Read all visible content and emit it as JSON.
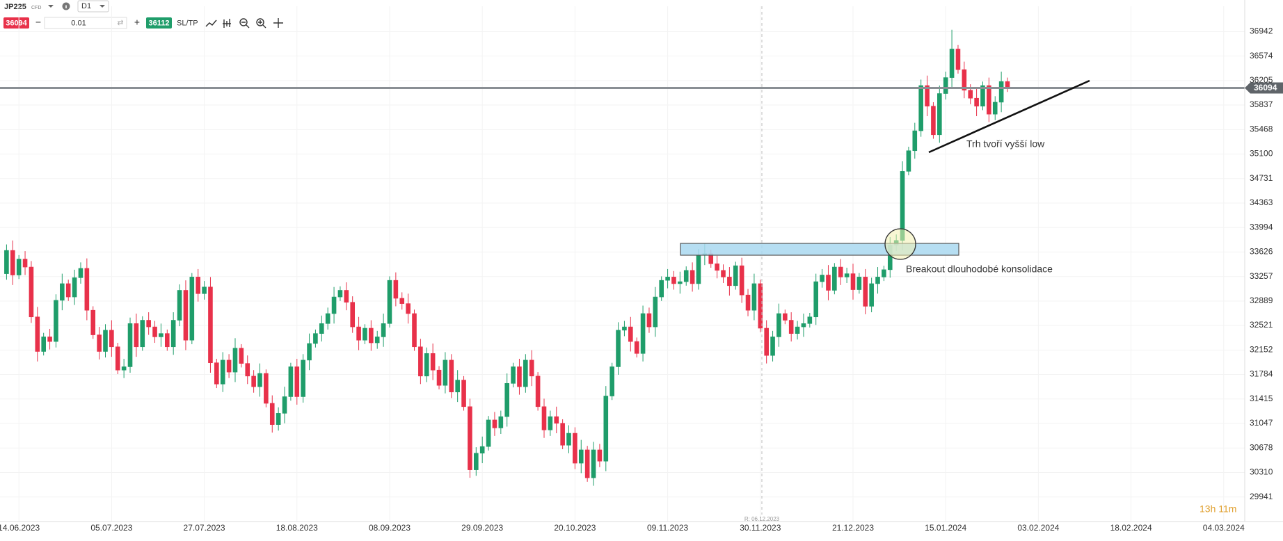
{
  "toolbar": {
    "symbol": "JP225",
    "instrument_type": "CFD",
    "timeframe": "D1",
    "sell_price": "36094",
    "volume": "0.01",
    "buy_price": "36112",
    "sl_tp": "SL/TP"
  },
  "chart_data": {
    "type": "candlestick",
    "up_color": "#1f9d6a",
    "down_color": "#e8314a",
    "grid": true,
    "ylim": [
      29572,
      37323
    ],
    "yticks": [
      36942,
      36574,
      36205,
      35837,
      35468,
      35100,
      34731,
      34363,
      33994,
      33626,
      33257,
      32889,
      32521,
      32152,
      31784,
      31415,
      31047,
      30678,
      30310,
      29941
    ],
    "xlim": [
      -1.06,
      200.4
    ],
    "xticks": [
      {
        "value": 2,
        "label": "14.06.2023"
      },
      {
        "value": 17,
        "label": "05.07.2023"
      },
      {
        "value": 32,
        "label": "27.07.2023"
      },
      {
        "value": 47,
        "label": "18.08.2023"
      },
      {
        "value": 62,
        "label": "08.09.2023"
      },
      {
        "value": 77,
        "label": "29.09.2023"
      },
      {
        "value": 92,
        "label": "20.10.2023"
      },
      {
        "value": 107,
        "label": "09.11.2023"
      },
      {
        "value": 122,
        "label": "30.11.2023"
      },
      {
        "value": 137,
        "label": "21.12.2023"
      },
      {
        "value": 152,
        "label": "15.01.2024"
      },
      {
        "value": 167,
        "label": "03.02.2024"
      },
      {
        "value": 182,
        "label": "18.02.2024"
      },
      {
        "value": 197,
        "label": "04.03.2024"
      }
    ],
    "last_price": 36094,
    "annotations": [
      "Breakout dlouhodobé konsolidace",
      "Trh tvoří vyšší low"
    ],
    "cursor_label": "R: 06.12.2023",
    "timer": "13h 11m",
    "open": [
      33300,
      33650,
      33280,
      33520,
      33400,
      32650,
      32130,
      32350,
      32280,
      32900,
      33150,
      32950,
      33240,
      33380,
      32750,
      32380,
      32130,
      32450,
      32200,
      31850,
      31900,
      32550,
      32200,
      32600,
      32500,
      32350,
      32400,
      32200,
      32600,
      33050,
      32300,
      33250,
      33000,
      33100,
      31960,
      31640,
      32000,
      31820,
      32180,
      31950,
      31760,
      31600,
      31800,
      31350,
      31030,
      31200,
      31450,
      31900,
      31450,
      32000,
      32250,
      32400,
      32550,
      32700,
      32950,
      33050,
      32870,
      32500,
      32300,
      32480,
      32260,
      32350,
      32550,
      33200,
      32930,
      32850,
      32700,
      32200,
      31760,
      32100,
      31850,
      31620,
      32000,
      31520,
      31700,
      31300,
      30350,
      30600,
      30700,
      31100,
      30980,
      31150,
      31650,
      31900,
      31600,
      32000,
      31760,
      31300,
      30950,
      31150,
      31050,
      30720,
      30900,
      30450,
      30650,
      30230,
      30650,
      30480,
      31460,
      31900,
      32450,
      32500,
      32280,
      32100,
      32700,
      32500,
      32950,
      33200,
      33250,
      33150,
      33180,
      33350,
      33150,
      33580,
      33600,
      33450,
      33350,
      33250,
      33120,
      33420,
      32980,
      32750,
      33150,
      32480,
      32070,
      32350,
      32700,
      32600,
      32400,
      32500,
      32550,
      32650,
      33180,
      33280,
      33050,
      33400,
      33250,
      33300,
      33060,
      33250,
      32810,
      33150,
      33250,
      33360,
      33730,
      33800,
      34840,
      35150,
      35450,
      36130,
      35820,
      35390,
      36010,
      36250,
      36680,
      36370,
      36060,
      35940,
      35820,
      36130,
      35700,
      35880,
      36190
    ],
    "high": [
      33740,
      33800,
      33580,
      33640,
      33490,
      32800,
      32410,
      32470,
      32990,
      33300,
      33210,
      33360,
      33470,
      33530,
      32810,
      32500,
      32540,
      32600,
      32260,
      32020,
      32640,
      32700,
      32660,
      32720,
      32590,
      32550,
      32460,
      32720,
      33140,
      33200,
      33310,
      33370,
      33190,
      33250,
      32020,
      32120,
      32090,
      32330,
      32240,
      32070,
      31850,
      31950,
      31860,
      31470,
      31290,
      31600,
      31960,
      32020,
      32090,
      32400,
      32460,
      32670,
      32790,
      33100,
      33110,
      33170,
      32960,
      32650,
      32540,
      32600,
      32440,
      32700,
      33260,
      33320,
      33020,
      33000,
      32760,
      32320,
      32190,
      32250,
      31910,
      32120,
      32090,
      31850,
      31760,
      31420,
      30690,
      30850,
      31160,
      31220,
      31240,
      31800,
      31960,
      32020,
      32090,
      32150,
      31820,
      31420,
      31240,
      31300,
      31110,
      31020,
      30990,
      30800,
      30710,
      30770,
      30740,
      31610,
      31960,
      32570,
      32590,
      32650,
      32340,
      32820,
      32790,
      33100,
      33260,
      33370,
      33340,
      33330,
      33410,
      33470,
      33670,
      33750,
      33660,
      33570,
      33440,
      33400,
      33480,
      33540,
      33070,
      33300,
      33210,
      32600,
      32440,
      32850,
      32760,
      32720,
      32590,
      32700,
      32710,
      33300,
      33370,
      33430,
      33460,
      33520,
      33390,
      33450,
      33310,
      33370,
      33240,
      33400,
      33420,
      33850,
      33890,
      34990,
      35210,
      35570,
      36220,
      36280,
      35880,
      36130,
      36340,
      36970,
      36740,
      36490,
      36150,
      36090,
      36190,
      36250,
      35970,
      36340,
      36250
    ],
    "low": [
      33210,
      33130,
      33220,
      33280,
      32560,
      31980,
      32070,
      32160,
      32190,
      32750,
      32890,
      32830,
      33150,
      32600,
      32320,
      32010,
      32040,
      32050,
      31790,
      31730,
      31810,
      32050,
      32140,
      32380,
      32260,
      32200,
      32140,
      32080,
      32510,
      32150,
      32240,
      32880,
      32910,
      31810,
      31580,
      31520,
      31730,
      31670,
      31890,
      31640,
      31510,
      31450,
      31290,
      30910,
      30940,
      31050,
      31390,
      31330,
      31360,
      31850,
      32190,
      32280,
      32460,
      32550,
      32890,
      32750,
      32410,
      32150,
      32240,
      32140,
      32170,
      32200,
      32490,
      32810,
      32760,
      32550,
      32140,
      31640,
      31670,
      31700,
      31560,
      31500,
      31430,
      31370,
      31240,
      30230,
      30260,
      30450,
      30640,
      30860,
      30890,
      31000,
      31590,
      31480,
      31510,
      31610,
      31240,
      30830,
      30860,
      30900,
      30660,
      30600,
      30360,
      30300,
      30170,
      30110,
      30390,
      30330,
      31400,
      31780,
      32360,
      32130,
      32040,
      31980,
      32410,
      32350,
      32890,
      33080,
      33060,
      33000,
      33120,
      33030,
      33060,
      33430,
      33390,
      33230,
      33160,
      32970,
      33060,
      32860,
      32660,
      32600,
      32420,
      31950,
      31980,
      32200,
      32540,
      32280,
      32310,
      32350,
      32490,
      32530,
      33090,
      32900,
      32990,
      33130,
      33160,
      32910,
      33000,
      32690,
      32720,
      33000,
      33190,
      33240,
      33640,
      33650,
      34780,
      35030,
      35360,
      35670,
      35330,
      35270,
      35920,
      36100,
      36310,
      35940,
      35850,
      35670,
      35760,
      35580,
      35610,
      35730,
      36034
    ],
    "close": [
      33650,
      33280,
      33520,
      33400,
      32650,
      32130,
      32350,
      32280,
      32900,
      33150,
      32950,
      33240,
      33380,
      32750,
      32380,
      32130,
      32450,
      32200,
      31850,
      31900,
      32550,
      32200,
      32600,
      32500,
      32350,
      32400,
      32200,
      32600,
      33050,
      32300,
      33250,
      33000,
      33100,
      31960,
      31640,
      32000,
      31820,
      32180,
      31950,
      31760,
      31600,
      31800,
      31350,
      31030,
      31200,
      31450,
      31900,
      31450,
      32000,
      32250,
      32400,
      32550,
      32700,
      32950,
      33050,
      32870,
      32500,
      32300,
      32480,
      32260,
      32350,
      32550,
      33200,
      32930,
      32850,
      32700,
      32200,
      31760,
      32100,
      31850,
      31620,
      32000,
      31520,
      31700,
      31300,
      30350,
      30600,
      30700,
      31100,
      30980,
      31150,
      31650,
      31900,
      31600,
      32000,
      31760,
      31300,
      30950,
      31150,
      31050,
      30720,
      30900,
      30450,
      30650,
      30230,
      30650,
      30480,
      31460,
      31900,
      32450,
      32500,
      32280,
      32100,
      32700,
      32500,
      32950,
      33200,
      33250,
      33150,
      33180,
      33350,
      33150,
      33580,
      33600,
      33450,
      33350,
      33250,
      33120,
      33420,
      32980,
      32750,
      33150,
      32480,
      32070,
      32350,
      32700,
      32600,
      32400,
      32500,
      32550,
      32650,
      33180,
      33280,
      33050,
      33400,
      33250,
      33300,
      33060,
      33250,
      32810,
      33150,
      33250,
      33360,
      33730,
      33800,
      34840,
      35150,
      35450,
      36130,
      35820,
      35390,
      36010,
      36250,
      36680,
      36370,
      36060,
      35940,
      35820,
      36130,
      35700,
      35880,
      36190,
      36094
    ]
  }
}
